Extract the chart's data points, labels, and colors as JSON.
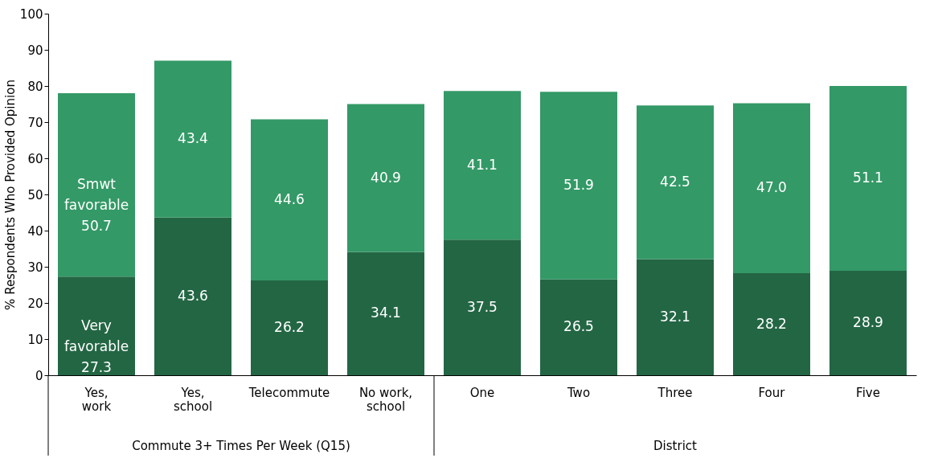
{
  "chart_data": {
    "type": "bar",
    "stacked": true,
    "ylabel": "% Respondents Who Provided Opinion",
    "categories": [
      "Yes, work",
      "Yes, school",
      "Telecommute",
      "No work, school",
      "One",
      "Two",
      "Three",
      "Four",
      "Five"
    ],
    "series": [
      {
        "name": "Very favorable",
        "color": "#236644",
        "values": [
          27.3,
          43.6,
          26.2,
          34.1,
          37.5,
          26.5,
          32.1,
          28.2,
          28.9
        ],
        "value_labels": [
          "27.3",
          "43.6",
          "26.2",
          "34.1",
          "37.5",
          "26.5",
          "32.1",
          "28.2",
          "28.9"
        ]
      },
      {
        "name": "Smwt favorable",
        "color": "#339966",
        "values": [
          50.7,
          43.4,
          44.6,
          40.9,
          41.1,
          51.9,
          42.5,
          47.0,
          51.1
        ],
        "value_labels": [
          "50.7",
          "43.4",
          "44.6",
          "40.9",
          "41.1",
          "51.9",
          "42.5",
          "47.0",
          "51.1"
        ]
      }
    ],
    "ylim": [
      0,
      100
    ],
    "yticks": [
      0,
      10,
      20,
      30,
      40,
      50,
      60,
      70,
      80,
      90,
      100
    ],
    "grid": false,
    "annotations": [
      "Commute 3+ Times Per Week (Q15)",
      "District"
    ]
  }
}
